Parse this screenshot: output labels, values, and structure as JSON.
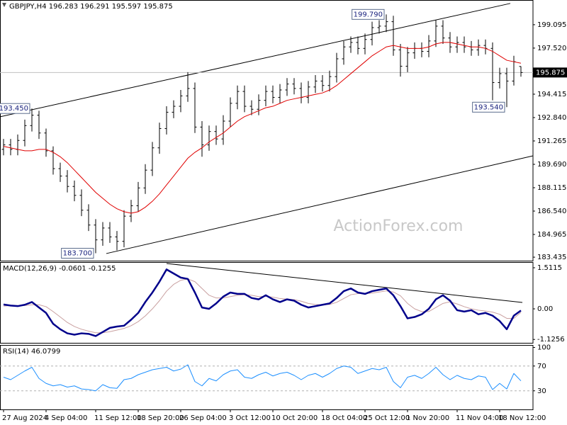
{
  "chart_data": [
    {
      "type": "ohlc",
      "title": "GBPJPY,H4 196.283 196.291 195.597 195.875",
      "color": "#000000",
      "categories": [
        "27 Aug 2024",
        null,
        null,
        null,
        null,
        null,
        "4 Sep 04:00",
        null,
        null,
        null,
        null,
        null,
        null,
        "11 Sep 12:00",
        null,
        null,
        null,
        null,
        null,
        "18 Sep 20:00",
        null,
        null,
        null,
        null,
        null,
        "26 Sep 04:00",
        null,
        null,
        null,
        null,
        null,
        null,
        "3 Oct 12:00",
        null,
        null,
        null,
        null,
        null,
        "10 Oct 20:00",
        null,
        null,
        null,
        null,
        null,
        null,
        "18 Oct 04:00",
        null,
        null,
        null,
        null,
        null,
        "25 Oct 12:00",
        null,
        null,
        null,
        null,
        null,
        "1 Nov 20:00",
        null,
        null,
        null,
        null,
        null,
        null,
        "11 Nov 04:00",
        null,
        null,
        null,
        null,
        null,
        "18 Nov 12:00",
        null,
        null,
        null
      ],
      "open": [
        190.7,
        191.0,
        190.7,
        191.3,
        192.3,
        193.0,
        191.8,
        190.6,
        189.4,
        188.9,
        188.2,
        187.6,
        186.6,
        185.6,
        184.6,
        185.4,
        184.8,
        184.5,
        186.2,
        186.9,
        188.1,
        189.3,
        190.8,
        192.1,
        193.2,
        193.6,
        194.3,
        194.8,
        192.2,
        191.0,
        191.9,
        191.4,
        192.6,
        193.8,
        194.6,
        193.6,
        193.4,
        194.0,
        194.6,
        194.2,
        194.7,
        195.1,
        194.8,
        194.2,
        194.9,
        195.3,
        195.0,
        195.6,
        196.8,
        197.6,
        197.9,
        197.5,
        198.1,
        198.9,
        199.0,
        199.3,
        197.4,
        196.3,
        197.2,
        197.5,
        197.3,
        198.0,
        199.0,
        198.2,
        197.6,
        197.9,
        197.6,
        197.4,
        197.7,
        197.5,
        195.2,
        195.8,
        195.3,
        196.283
      ],
      "high": [
        191.4,
        191.4,
        191.7,
        192.7,
        193.45,
        193.3,
        192.1,
        190.9,
        189.8,
        189.3,
        188.6,
        188.0,
        187.0,
        186.0,
        185.8,
        185.8,
        185.2,
        186.6,
        187.3,
        188.5,
        189.7,
        191.2,
        192.5,
        193.6,
        194.0,
        194.7,
        195.9,
        195.2,
        192.6,
        192.3,
        192.3,
        193.0,
        194.2,
        195.0,
        195.0,
        194.0,
        194.4,
        195.0,
        195.0,
        195.1,
        195.5,
        195.5,
        195.2,
        195.3,
        195.7,
        195.7,
        196.0,
        197.2,
        198.0,
        198.3,
        198.3,
        198.5,
        199.3,
        199.4,
        199.79,
        199.7,
        197.8,
        197.6,
        197.9,
        197.9,
        198.4,
        199.4,
        199.4,
        198.6,
        198.3,
        198.3,
        198.0,
        198.1,
        198.1,
        197.9,
        196.2,
        196.2,
        197.0,
        196.291
      ],
      "low": [
        190.3,
        190.3,
        190.3,
        190.9,
        191.9,
        191.4,
        190.2,
        189.0,
        188.5,
        187.8,
        187.2,
        186.2,
        185.2,
        183.7,
        184.2,
        184.4,
        183.9,
        184.1,
        185.8,
        186.5,
        187.7,
        188.9,
        190.4,
        191.7,
        192.8,
        193.2,
        193.9,
        191.8,
        190.2,
        190.6,
        191.0,
        191.0,
        192.2,
        193.4,
        193.2,
        193.0,
        193.0,
        193.6,
        193.8,
        193.8,
        194.3,
        194.4,
        193.8,
        193.8,
        194.5,
        194.6,
        194.6,
        195.2,
        196.4,
        197.2,
        197.1,
        197.1,
        197.7,
        198.5,
        198.6,
        197.0,
        195.6,
        195.9,
        196.8,
        196.9,
        196.9,
        197.6,
        197.8,
        197.2,
        197.2,
        197.2,
        197.0,
        197.0,
        197.1,
        194.0,
        194.8,
        193.54,
        195.0,
        195.597
      ],
      "close": [
        191.0,
        190.7,
        191.3,
        192.3,
        193.0,
        191.8,
        190.6,
        189.4,
        188.9,
        188.2,
        187.6,
        186.6,
        185.6,
        184.6,
        185.4,
        184.8,
        184.5,
        186.2,
        186.9,
        188.1,
        189.3,
        190.8,
        192.1,
        193.2,
        193.6,
        194.3,
        194.8,
        192.2,
        191.0,
        191.9,
        191.4,
        192.6,
        193.8,
        194.6,
        193.6,
        193.4,
        194.0,
        194.6,
        194.2,
        194.7,
        195.1,
        194.8,
        194.2,
        194.9,
        195.3,
        195.0,
        195.6,
        196.8,
        197.6,
        197.9,
        197.5,
        198.1,
        198.9,
        199.0,
        199.3,
        197.4,
        196.3,
        197.2,
        197.5,
        197.3,
        198.0,
        199.0,
        198.2,
        197.6,
        197.9,
        197.6,
        197.4,
        197.7,
        197.5,
        195.2,
        195.8,
        195.3,
        196.6,
        195.875
      ],
      "moving_average": {
        "color": "#e00000",
        "values": [
          190.9,
          190.8,
          190.7,
          190.6,
          190.6,
          190.7,
          190.7,
          190.5,
          190.2,
          189.8,
          189.3,
          188.8,
          188.3,
          187.8,
          187.4,
          187.0,
          186.7,
          186.5,
          186.4,
          186.5,
          186.8,
          187.2,
          187.7,
          188.3,
          188.9,
          189.5,
          190.1,
          190.5,
          190.8,
          191.2,
          191.5,
          191.8,
          192.2,
          192.6,
          192.9,
          193.1,
          193.3,
          193.5,
          193.6,
          193.8,
          194.0,
          194.1,
          194.2,
          194.3,
          194.4,
          194.5,
          194.7,
          195.0,
          195.4,
          195.8,
          196.2,
          196.6,
          197.0,
          197.3,
          197.6,
          197.7,
          197.6,
          197.5,
          197.5,
          197.5,
          197.6,
          197.8,
          197.9,
          197.9,
          197.8,
          197.7,
          197.6,
          197.6,
          197.5,
          197.3,
          197.0,
          196.7,
          196.6,
          196.5
        ]
      },
      "trendlines": [
        {
          "x": [
            -0.5,
            71.5
          ],
          "y": [
            192.89,
            200.53
          ]
        },
        {
          "x": [
            14.5,
            74.7
          ],
          "y": [
            183.68,
            190.26
          ]
        }
      ],
      "annotations": [
        {
          "x": 4,
          "value": 193.45,
          "label": "193.450"
        },
        {
          "x": 13,
          "value": 183.7,
          "label": "183.700"
        },
        {
          "x": 54,
          "value": 199.79,
          "label": "199.790"
        },
        {
          "x": 71,
          "value": 193.54,
          "label": "193.540"
        }
      ],
      "last_price": {
        "value": 195.875,
        "label": "195.875"
      },
      "watermark": "ActionForex.com",
      "ylim": [
        183.2,
        200.76
      ],
      "yticks": [
        199.095,
        {
          "value": 197.52,
          "label": "197.520"
        },
        194.415,
        {
          "value": 192.84,
          "label": "192.840"
        },
        191.265,
        {
          "value": 189.69,
          "label": "189.690"
        },
        188.115,
        {
          "value": 186.54,
          "label": "186.540"
        },
        184.965,
        183.435
      ]
    },
    {
      "type": "line",
      "title": "MACD(12,26,9) -0.0601 -0.1255",
      "series": [
        {
          "color": "#00008b",
          "values": [
            0.16,
            0.12,
            0.1,
            0.15,
            0.25,
            0.05,
            -0.15,
            -0.55,
            -0.75,
            -0.9,
            -0.95,
            -0.9,
            -0.92,
            -1.0,
            -0.85,
            -0.7,
            -0.65,
            -0.62,
            -0.4,
            -0.15,
            0.25,
            0.6,
            1.0,
            1.45,
            1.3,
            1.15,
            1.1,
            0.6,
            0.05,
            0.0,
            0.2,
            0.45,
            0.6,
            0.55,
            0.55,
            0.4,
            0.35,
            0.5,
            0.35,
            0.25,
            0.35,
            0.3,
            0.15,
            0.05,
            0.1,
            0.15,
            0.2,
            0.4,
            0.65,
            0.75,
            0.6,
            0.55,
            0.65,
            0.7,
            0.75,
            0.5,
            0.1,
            -0.35,
            -0.3,
            -0.2,
            0.0,
            0.35,
            0.5,
            0.3,
            -0.05,
            -0.1,
            -0.05,
            -0.2,
            -0.15,
            -0.25,
            -0.45,
            -0.75,
            -0.25,
            -0.0601
          ]
        },
        {
          "color": "#c9a0a0",
          "values": [
            0.1,
            0.12,
            0.12,
            0.12,
            0.15,
            0.15,
            0.08,
            -0.1,
            -0.3,
            -0.5,
            -0.65,
            -0.75,
            -0.82,
            -0.88,
            -0.88,
            -0.84,
            -0.78,
            -0.72,
            -0.62,
            -0.47,
            -0.26,
            0.0,
            0.3,
            0.65,
            0.9,
            1.05,
            1.1,
            1.0,
            0.75,
            0.5,
            0.4,
            0.4,
            0.45,
            0.5,
            0.52,
            0.5,
            0.45,
            0.46,
            0.43,
            0.38,
            0.36,
            0.34,
            0.28,
            0.2,
            0.16,
            0.15,
            0.16,
            0.24,
            0.38,
            0.52,
            0.56,
            0.56,
            0.58,
            0.62,
            0.66,
            0.62,
            0.48,
            0.2,
            0.0,
            -0.1,
            -0.1,
            0.05,
            0.2,
            0.26,
            0.18,
            0.08,
            0.0,
            -0.05,
            -0.08,
            -0.12,
            -0.2,
            -0.35,
            -0.35,
            -0.1255
          ]
        }
      ],
      "trendlines": [
        {
          "x": [
            23,
            73.2
          ],
          "y": [
            1.668,
            0.235
          ]
        }
      ],
      "ylim": [
        -1.25,
        1.72
      ],
      "yticks": [
        1.5115,
        {
          "value": 0,
          "label": "0.00"
        },
        -1.1256
      ]
    },
    {
      "type": "line",
      "title": "RSI(14) 46.0799",
      "series": [
        {
          "color": "#1e90ff",
          "values": [
            52,
            48,
            55,
            62,
            68,
            50,
            42,
            38,
            40,
            36,
            38,
            33,
            32,
            30,
            40,
            35,
            34,
            48,
            50,
            56,
            60,
            64,
            66,
            68,
            62,
            65,
            72,
            45,
            38,
            50,
            46,
            56,
            62,
            64,
            52,
            50,
            56,
            60,
            54,
            58,
            60,
            55,
            48,
            55,
            58,
            52,
            58,
            66,
            70,
            68,
            58,
            62,
            66,
            64,
            68,
            45,
            35,
            52,
            55,
            50,
            58,
            68,
            56,
            48,
            55,
            50,
            48,
            54,
            52,
            32,
            42,
            33,
            58,
            46.0799
          ]
        }
      ],
      "levels": [
        70,
        30
      ],
      "ylim": [
        0,
        104
      ],
      "yticks": [
        100,
        70,
        30
      ]
    }
  ]
}
